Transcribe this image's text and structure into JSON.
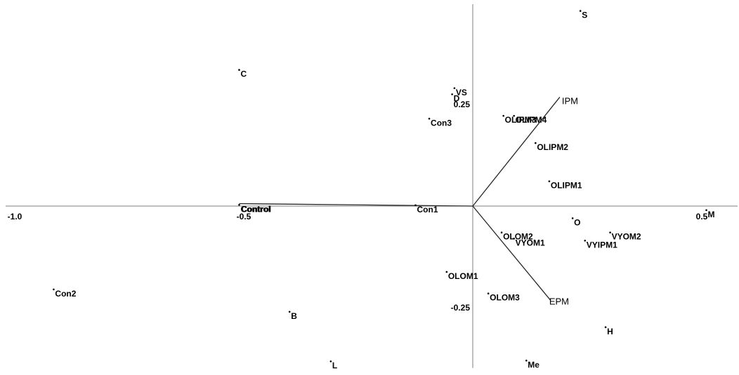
{
  "chart_data": {
    "type": "scatter",
    "xlim": [
      -1.0,
      0.57
    ],
    "ylim": [
      -0.39,
      0.5
    ],
    "x_ticks": [
      {
        "value": -1.0,
        "label": "-1.0"
      },
      {
        "value": -0.5,
        "label": "-0.5"
      },
      {
        "value": 0.5,
        "label": "0.5"
      }
    ],
    "y_ticks": [
      {
        "value": 0.25,
        "label": "0.25"
      },
      {
        "value": -0.25,
        "label": "-0.25"
      }
    ],
    "points": [
      {
        "label": "S",
        "x": 0.235,
        "y": 0.48
      },
      {
        "label": "C",
        "x": -0.51,
        "y": 0.335
      },
      {
        "label": "VS",
        "x": -0.04,
        "y": 0.29
      },
      {
        "label": "D",
        "x": -0.045,
        "y": 0.275
      },
      {
        "label": "OLIPM3",
        "x": 0.067,
        "y": 0.222
      },
      {
        "label": "OLIPM4",
        "x": 0.09,
        "y": 0.222
      },
      {
        "label": "Con3",
        "x": -0.095,
        "y": 0.215
      },
      {
        "label": "OLIPM2",
        "x": 0.137,
        "y": 0.155
      },
      {
        "label": "OLIPM1",
        "x": 0.167,
        "y": 0.061
      },
      {
        "label": "Control",
        "x": -0.51,
        "y": 0.003
      },
      {
        "label": "Con1",
        "x": -0.125,
        "y": 0.002
      },
      {
        "label": "M",
        "x": 0.51,
        "y": -0.01
      },
      {
        "label": "O",
        "x": 0.218,
        "y": -0.03
      },
      {
        "label": "OLOM2",
        "x": 0.063,
        "y": -0.065
      },
      {
        "label": "VYOM2",
        "x": 0.3,
        "y": -0.065
      },
      {
        "label": "VYOM1",
        "x": 0.09,
        "y": -0.08
      },
      {
        "label": "VYIPM1",
        "x": 0.245,
        "y": -0.085
      },
      {
        "label": "OLOM1",
        "x": -0.057,
        "y": -0.162
      },
      {
        "label": "Con2",
        "x": -0.915,
        "y": -0.205
      },
      {
        "label": "OLOM3",
        "x": 0.034,
        "y": -0.215
      },
      {
        "label": "B",
        "x": -0.4,
        "y": -0.26
      },
      {
        "label": "H",
        "x": 0.29,
        "y": -0.298
      },
      {
        "label": "L",
        "x": -0.31,
        "y": -0.382
      },
      {
        "label": "Me",
        "x": 0.117,
        "y": -0.38
      }
    ],
    "vectors": [
      {
        "label": "IPM",
        "x": 0.19,
        "y": 0.268
      },
      {
        "label": "Control",
        "x": -0.51,
        "y": 0.006
      },
      {
        "label": "EPM",
        "x": 0.17,
        "y": -0.232
      }
    ]
  }
}
